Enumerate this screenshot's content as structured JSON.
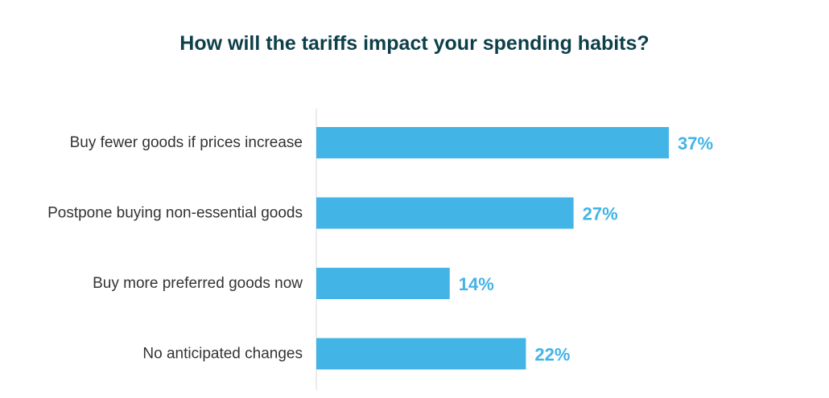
{
  "chart_data": {
    "type": "bar",
    "orientation": "horizontal",
    "title": "How will the tariffs impact your spending habits?",
    "categories": [
      "Buy fewer goods if prices increase",
      "Postpone buying non-essential goods",
      "Buy more preferred goods now",
      "No anticipated changes"
    ],
    "values": [
      37,
      27,
      14,
      22
    ],
    "value_labels": [
      "37%",
      "27%",
      "14%",
      "22%"
    ],
    "unit": "%",
    "xlabel": "",
    "ylabel": "",
    "xlim": [
      0,
      37
    ],
    "grid": false,
    "legend": "none"
  },
  "colors": {
    "bar": "#42b4e6",
    "value_label": "#42b4e6",
    "title": "#0d3f4a",
    "axis": "#d9d9d9"
  }
}
